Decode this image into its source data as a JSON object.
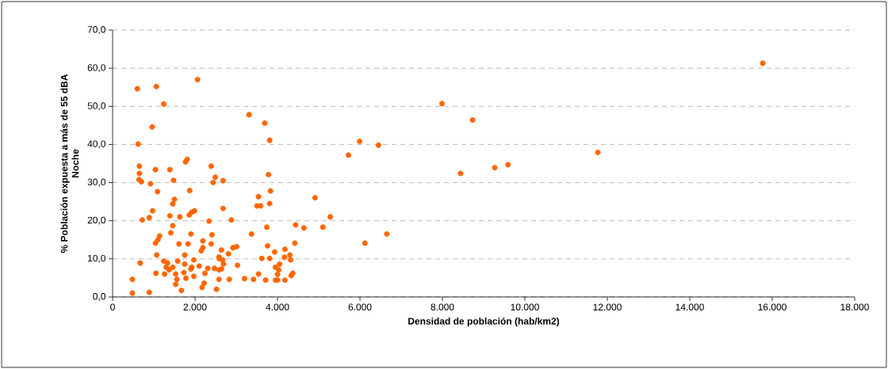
{
  "chart_data": {
    "type": "scatter",
    "xlabel": "Densidad de población (hab/km2)",
    "ylabel": "% Población expuesta a más de 55 dBA Noche",
    "xlim": [
      0,
      18000
    ],
    "ylim": [
      0,
      70
    ],
    "xticks": [
      {
        "value": 0,
        "label": "0"
      },
      {
        "value": 2000,
        "label": "2.000"
      },
      {
        "value": 4000,
        "label": "4.000"
      },
      {
        "value": 6000,
        "label": "6.000"
      },
      {
        "value": 8000,
        "label": "8.000"
      },
      {
        "value": 10000,
        "label": "10.000"
      },
      {
        "value": 12000,
        "label": "12.000"
      },
      {
        "value": 14000,
        "label": "14.000"
      },
      {
        "value": 16000,
        "label": "16.000"
      },
      {
        "value": 18000,
        "label": "18.000"
      }
    ],
    "yticks": [
      {
        "value": 0,
        "label": "0,0"
      },
      {
        "value": 10,
        "label": "10,0"
      },
      {
        "value": 20,
        "label": "20,0"
      },
      {
        "value": 30,
        "label": "30,0"
      },
      {
        "value": 40,
        "label": "40,0"
      },
      {
        "value": 50,
        "label": "50,0"
      },
      {
        "value": 60,
        "label": "60,0"
      },
      {
        "value": 70,
        "label": "70,0"
      }
    ],
    "grid": "y",
    "series": [
      {
        "color": "#ff6600",
        "x": [
          600,
          1060,
          2060,
          1240,
          3310,
          960,
          620,
          1810,
          1770,
          650,
          2390,
          1040,
          1390,
          650,
          2490,
          640,
          700,
          1480,
          2440,
          2680,
          920,
          1090,
          1870,
          1500,
          1460,
          970,
          1990,
          1920,
          1860,
          1390,
          1630,
          2680,
          720,
          890,
          2340,
          2880,
          1460,
          1410,
          1900,
          2410,
          1140,
          1100,
          1040,
          1610,
          1830,
          2190,
          2190,
          2150,
          2390,
          2640,
          2920,
          3010,
          3370,
          2810,
          1070,
          1750,
          2580,
          2590,
          2670,
          670,
          1240,
          1330,
          1580,
          1970,
          1750,
          2690,
          3030,
          1300,
          1460,
          1370,
          1920,
          1900,
          2100,
          2310,
          2470,
          2580,
          2640,
          1050,
          1260,
          1530,
          1730,
          2240,
          1560,
          1970,
          1780,
          2580,
          2830,
          3200,
          480,
          1530,
          2220,
          2170,
          2520,
          1670,
          890,
          480,
          3690,
          3810,
          5990,
          6450,
          5720,
          3780,
          3830,
          3540,
          4910,
          3810,
          3500,
          3590,
          5280,
          4440,
          4640,
          5100,
          3740,
          6120,
          4420,
          3760,
          3930,
          4180,
          4300,
          4170,
          4320,
          3620,
          3810,
          4050,
          3950,
          4030,
          4000,
          4370,
          4330,
          3540,
          3420,
          3710,
          3950,
          4000,
          4180,
          7990,
          8730,
          11770,
          8440,
          9270,
          9590,
          6650,
          15770
        ],
        "values": [
          54.6,
          55.2,
          57.0,
          50.6,
          47.8,
          44.6,
          40.1,
          36.1,
          35.4,
          34.3,
          34.3,
          33.4,
          33.4,
          32.4,
          31.4,
          30.8,
          30.2,
          30.6,
          30.0,
          30.5,
          29.7,
          27.6,
          27.9,
          25.6,
          24.4,
          22.6,
          22.6,
          22.2,
          21.5,
          21.3,
          21.0,
          23.2,
          20.2,
          20.8,
          19.9,
          20.2,
          18.7,
          16.8,
          16.5,
          16.3,
          16.0,
          15.0,
          14.1,
          13.9,
          13.9,
          14.7,
          12.9,
          12.1,
          13.9,
          12.3,
          12.9,
          13.2,
          16.5,
          11.3,
          11.0,
          11.0,
          10.5,
          10.0,
          9.7,
          8.9,
          9.4,
          8.9,
          9.4,
          9.7,
          8.6,
          8.6,
          8.3,
          7.8,
          7.8,
          7.1,
          7.8,
          7.3,
          8.1,
          7.5,
          7.5,
          7.1,
          7.3,
          6.2,
          6.0,
          6.0,
          6.4,
          6.2,
          4.6,
          5.4,
          4.9,
          4.6,
          4.6,
          4.8,
          4.6,
          3.3,
          3.6,
          2.5,
          2.0,
          1.7,
          1.2,
          1.0,
          45.6,
          41.1,
          40.8,
          39.8,
          37.2,
          32.1,
          27.8,
          26.3,
          26.0,
          24.5,
          23.9,
          23.9,
          21.0,
          18.9,
          18.1,
          18.3,
          18.3,
          14.1,
          14.1,
          13.4,
          11.8,
          12.5,
          11.0,
          10.4,
          9.7,
          10.1,
          10.1,
          8.6,
          7.8,
          7.1,
          5.9,
          6.2,
          5.6,
          6.0,
          4.6,
          4.4,
          4.4,
          4.4,
          4.4,
          50.7,
          46.4,
          37.9,
          32.4,
          33.9,
          34.7,
          16.5,
          61.3
        ]
      }
    ]
  }
}
